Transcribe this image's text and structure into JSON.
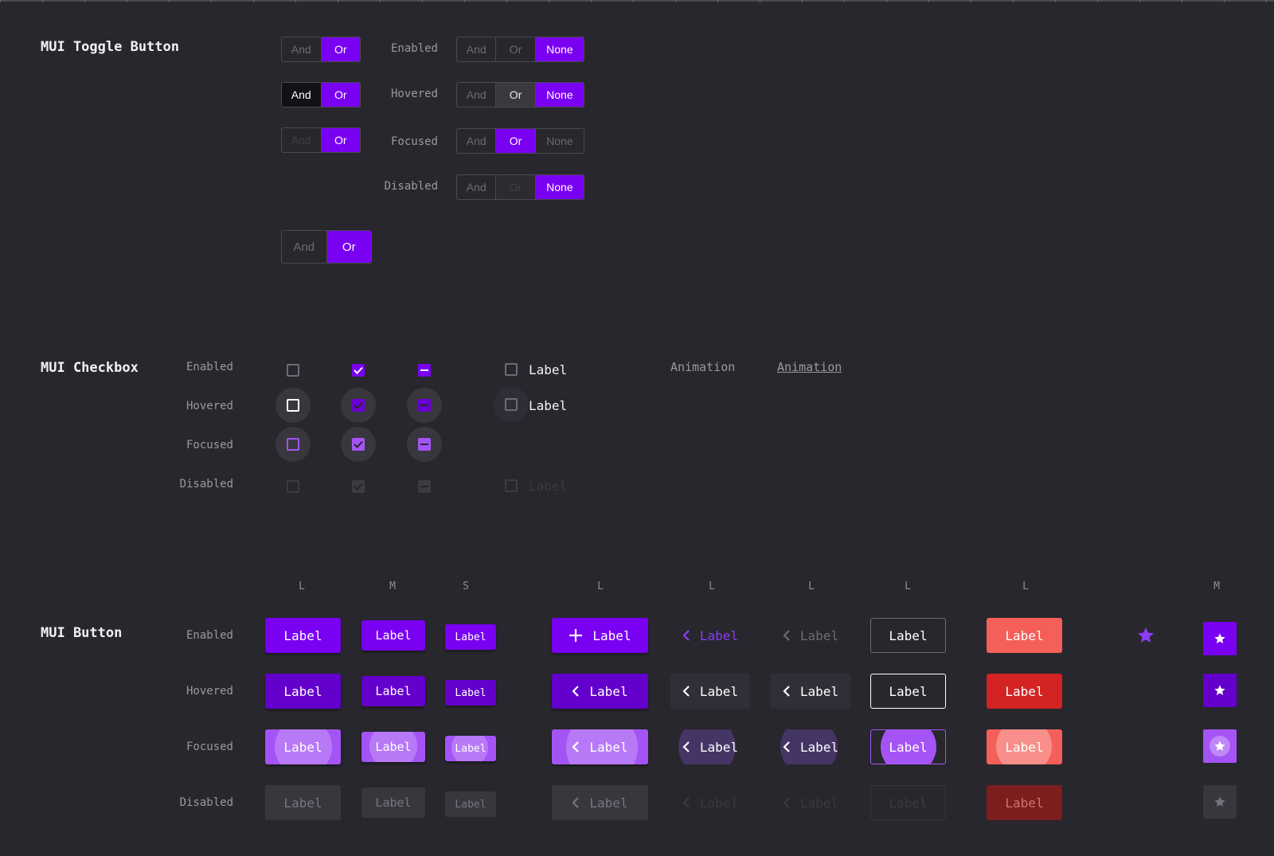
{
  "toggle": {
    "title": "MUI Toggle Button",
    "states": [
      "Enabled",
      "Hovered",
      "Focused",
      "Disabled"
    ],
    "and": "And",
    "or": "Or",
    "none": "None"
  },
  "checkbox": {
    "title": "MUI Checkbox",
    "states": [
      "Enabled",
      "Hovered",
      "Focused",
      "Disabled"
    ],
    "label": "Label",
    "animation_plain": "Animation",
    "animation_link": "Animation"
  },
  "button": {
    "title": "MUI Button",
    "states": [
      "Enabled",
      "Hovered",
      "Focused",
      "Disabled"
    ],
    "size_headers": [
      "L",
      "M",
      "S",
      "L",
      "L",
      "L",
      "L",
      "L",
      "M"
    ],
    "label": "Label"
  },
  "colors": {
    "background": "#28272d",
    "primary": "#7a00f2",
    "primary_light": "#a454f5",
    "error": "#f55f5a"
  },
  "icons": [
    "plus-icon",
    "chevron-left-icon",
    "star-icon",
    "check-icon",
    "dash-icon"
  ]
}
